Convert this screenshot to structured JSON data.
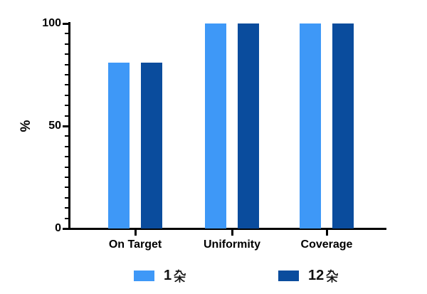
{
  "chart_data": {
    "type": "bar",
    "title": "",
    "ylabel": "%",
    "xlabel": "",
    "ylim": [
      0,
      100
    ],
    "y_major_ticks": [
      0,
      50,
      100
    ],
    "y_minor_tick_step": 5,
    "grid": false,
    "legend_position": "bottom",
    "background_color": "#FFFFFF",
    "axis_color": "#000000",
    "categories": [
      "On Target",
      "Uniformity",
      "Coverage"
    ],
    "series": [
      {
        "name": "1杂",
        "color": "#3E98F7",
        "values": [
          81,
          100,
          100
        ]
      },
      {
        "name": "12杂",
        "color": "#0A4C9D",
        "values": [
          81,
          100,
          100
        ]
      }
    ]
  },
  "y_axis": {
    "title": "%",
    "tick_labels": [
      "0",
      "50",
      "100"
    ]
  },
  "legend": {
    "items": [
      {
        "label": "1杂",
        "number": "1",
        "cjk_char": "杂",
        "color": "#3E98F7"
      },
      {
        "label": "12杂",
        "number": "12",
        "cjk_char": "杂",
        "color": "#0A4C9D"
      }
    ]
  }
}
